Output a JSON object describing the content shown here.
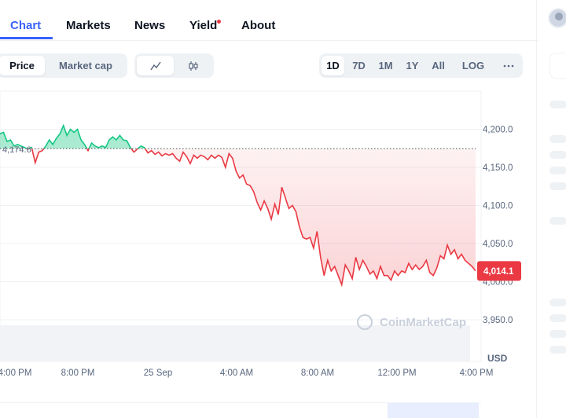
{
  "nav": {
    "tabs": [
      {
        "label": "Chart"
      },
      {
        "label": "Markets"
      },
      {
        "label": "News"
      },
      {
        "label": "Yield"
      },
      {
        "label": "About"
      }
    ]
  },
  "toolbar": {
    "metric": [
      "Price",
      "Market cap"
    ],
    "chart_style_icons": [
      "line-chart-icon",
      "candlestick-icon"
    ],
    "ranges": [
      "1D",
      "7D",
      "1M",
      "1Y",
      "All",
      "LOG"
    ],
    "more_icon": "more-horizontal-icon"
  },
  "colors": {
    "accent": "#3861fb",
    "up": "#16c784",
    "down": "#ea3943",
    "muted": "#58667e"
  },
  "chart_data": {
    "type": "area",
    "reference_label": "4,174.6",
    "reference_value": 4174.6,
    "current_label": "4,014.1",
    "current_value": 4014.1,
    "y_ticks": [
      "4,200.0",
      "4,150.0",
      "4,100.0",
      "4,050.0",
      "4,000.0",
      "3,950.0"
    ],
    "y_tick_values": [
      4200,
      4150,
      4100,
      4050,
      4000,
      3950
    ],
    "x_ticks": [
      "4:00 PM",
      "8:00 PM",
      "25 Sep",
      "4:00 AM",
      "8:00 AM",
      "12:00 PM",
      "4:00 PM"
    ],
    "unit": "USD",
    "watermark": "CoinMarketCap",
    "y_range": [
      3950,
      4200
    ],
    "series": [
      {
        "values": [
          4194,
          4196,
          4184,
          4186,
          4178,
          4180,
          4178,
          4176,
          4174,
          4176,
          4156,
          4170,
          4172,
          4178,
          4186,
          4180,
          4188,
          4194,
          4205,
          4192,
          4200,
          4196,
          4200,
          4186,
          4180,
          4172,
          4182,
          4178,
          4176,
          4178,
          4176,
          4186,
          4190,
          4186,
          4192,
          4186,
          4185,
          4176,
          4170,
          4174,
          4178,
          4176,
          4169,
          4172,
          4167,
          4170,
          4165,
          4168,
          4166,
          4168,
          4162,
          4158,
          4170,
          4164,
          4155,
          4166,
          4162,
          4166,
          4164,
          4160,
          4166,
          4162,
          4166,
          4163,
          4150,
          4168,
          4162,
          4145,
          4136,
          4140,
          4128,
          4126,
          4118,
          4104,
          4094,
          4106,
          4096,
          4082,
          4102,
          4088,
          4124,
          4110,
          4096,
          4100,
          4092,
          4072,
          4058,
          4056,
          4058,
          4044,
          4066,
          4032,
          4008,
          4028,
          4014,
          4020,
          4008,
          3996,
          4022,
          4014,
          4004,
          4032,
          4016,
          4028,
          4020,
          4010,
          4014,
          4004,
          4020,
          4008,
          4008,
          4002,
          4014,
          4008,
          4014,
          4012,
          4024,
          4016,
          4022,
          4016,
          4020,
          4028,
          4012,
          4008,
          4018,
          4034,
          4030,
          4048,
          4036,
          4042,
          4030,
          4036,
          4028,
          4024,
          4020,
          4014
        ]
      }
    ]
  }
}
